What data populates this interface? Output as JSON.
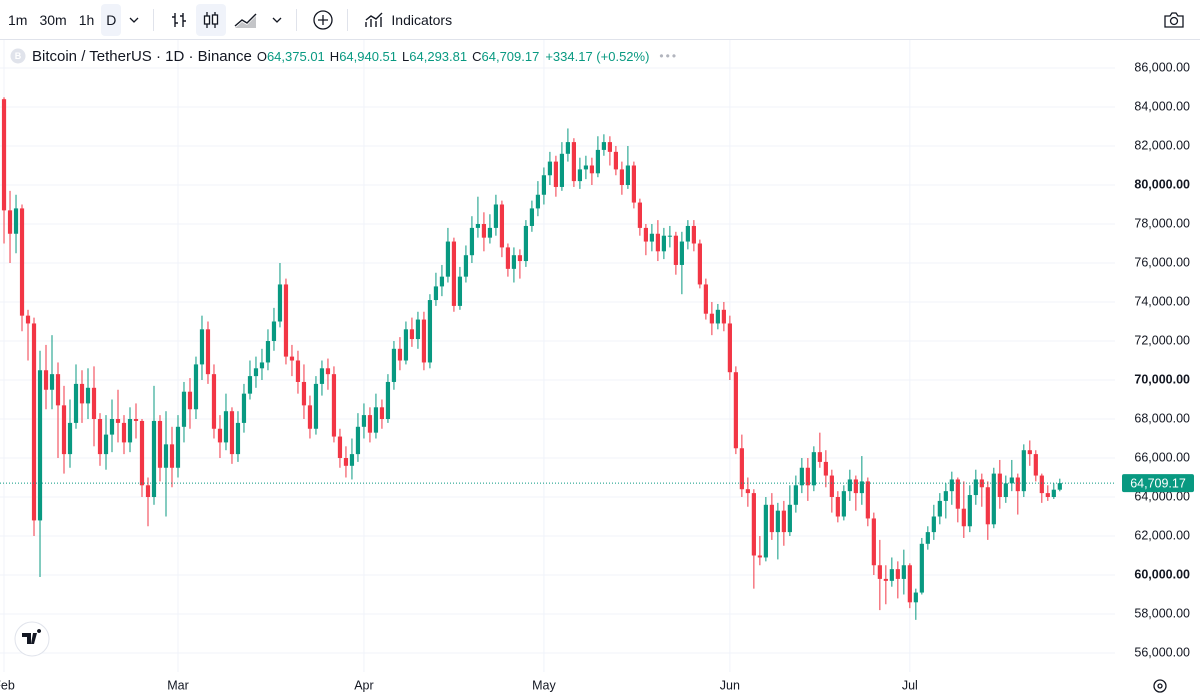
{
  "toolbar": {
    "intervals": [
      "1m",
      "30m",
      "1h",
      "D"
    ],
    "indicators": "Indicators"
  },
  "chart_data": {
    "type": "candlestick",
    "title": "Bitcoin / TetherUS · 1D · Binance",
    "ohlc_legend": [
      {
        "key": "O",
        "value": "64,375.01"
      },
      {
        "key": "H",
        "value": "64,940.51"
      },
      {
        "key": "L",
        "value": "64,293.81"
      },
      {
        "key": "C",
        "value": "64,709.17"
      }
    ],
    "change": "+334.17 (+0.52%)",
    "up_color": "#089981",
    "down_color": "#f23645",
    "open": [
      84400,
      78700,
      77500,
      78800,
      73300,
      72900,
      62800,
      70500,
      69500,
      70300,
      68700,
      66200,
      67800,
      69800,
      68800,
      69600,
      68000,
      66200,
      67200,
      68000,
      67800,
      66800,
      68000,
      67900,
      64600,
      64000,
      67900,
      65500,
      66700,
      65500,
      67600,
      69400,
      68500,
      70800,
      72600,
      70300,
      67500,
      66800,
      68400,
      66200,
      67800,
      69300,
      70200,
      70600,
      70900,
      72000,
      73000,
      74900,
      71200,
      71000,
      69900,
      68700,
      67500,
      69800,
      70600,
      70300,
      67100,
      66000,
      65600,
      66200,
      67600,
      68200,
      67300,
      68600,
      68000,
      69900,
      71600,
      71000,
      72600,
      72100,
      73100,
      70900,
      74100,
      74800,
      75300,
      77100,
      73800,
      75300,
      76400,
      77800,
      78000,
      77300,
      77800,
      79000,
      76800,
      75700,
      76400,
      76100,
      77900,
      78800,
      79500,
      80500,
      81200,
      79900,
      81600,
      82200,
      80200,
      80800,
      81000,
      80600,
      81800,
      82200,
      81700,
      80800,
      80000,
      81000,
      79100,
      77800,
      77100,
      77500,
      76600,
      77400,
      77400,
      75900,
      77100,
      77900,
      77000,
      74900,
      73400,
      72900,
      73600,
      72900,
      70400,
      66500,
      64400,
      64200,
      61000,
      60900,
      63600,
      62200,
      63300,
      62200,
      63600,
      64600,
      65500,
      64600,
      66300,
      65800,
      65100,
      64000,
      63000,
      64300,
      64900,
      64200,
      64800,
      62900,
      60500,
      59800,
      59700,
      60300,
      59800,
      60500,
      58600,
      59100,
      61600,
      62200,
      63000,
      63800,
      64300,
      64900,
      63400,
      62500,
      64100,
      64900,
      64500,
      62600,
      65200,
      64000,
      64700,
      65000,
      64300,
      66400,
      66200,
      65100,
      64200,
      64000,
      64375.01
    ],
    "high": [
      84500,
      79700,
      79500,
      79000,
      73600,
      73200,
      71500,
      71800,
      72300,
      70900,
      69700,
      69000,
      70800,
      70500,
      70600,
      70700,
      68300,
      68200,
      69000,
      69500,
      68200,
      68600,
      68800,
      68000,
      65000,
      69700,
      68200,
      68400,
      67600,
      68200,
      69900,
      70100,
      71200,
      73300,
      73000,
      70800,
      68200,
      69300,
      68600,
      68400,
      69800,
      71000,
      71200,
      71600,
      72600,
      73700,
      76000,
      75200,
      71800,
      71500,
      70800,
      69200,
      70200,
      71000,
      71100,
      70700,
      67500,
      66600,
      67000,
      68300,
      68800,
      68600,
      69300,
      69000,
      70300,
      72000,
      72200,
      73000,
      73200,
      73500,
      73500,
      74400,
      75500,
      75900,
      77800,
      77300,
      75800,
      76900,
      78400,
      79400,
      78600,
      78500,
      79500,
      79200,
      77000,
      76800,
      76700,
      78200,
      79200,
      80200,
      80900,
      81700,
      81500,
      82200,
      82900,
      82400,
      81400,
      81500,
      81400,
      82500,
      82600,
      82500,
      82000,
      81200,
      82000,
      81200,
      79300,
      78000,
      78000,
      78200,
      77800,
      77900,
      77600,
      77600,
      78200,
      78200,
      77200,
      75200,
      74000,
      73900,
      74000,
      73300,
      70700,
      67200,
      65000,
      64400,
      62000,
      64000,
      64200,
      63700,
      63800,
      64600,
      65100,
      66000,
      66000,
      66600,
      67300,
      66400,
      65400,
      64300,
      64600,
      65400,
      65100,
      66100,
      65000,
      63200,
      61800,
      60500,
      60900,
      60700,
      61300,
      60600,
      59300,
      61900,
      62500,
      63600,
      64200,
      64700,
      65300,
      65000,
      64800,
      64600,
      65400,
      65200,
      64800,
      65500,
      65900,
      65100,
      65900,
      65200,
      66700,
      66900,
      66400,
      65200,
      64600,
      64700,
      64940.51
    ],
    "low": [
      77000,
      76000,
      76500,
      72500,
      71000,
      62000,
      59900,
      68500,
      68500,
      66000,
      65200,
      65500,
      67500,
      67800,
      68000,
      66600,
      65600,
      65400,
      66300,
      66800,
      66200,
      66300,
      67000,
      64000,
      62500,
      63600,
      64800,
      63000,
      64500,
      65000,
      66800,
      67500,
      68000,
      70000,
      69800,
      67000,
      66000,
      66400,
      65700,
      65800,
      67300,
      69000,
      69600,
      70000,
      70500,
      71500,
      72700,
      70800,
      70200,
      69300,
      68000,
      67000,
      67200,
      69200,
      69500,
      66800,
      65500,
      65000,
      64900,
      65800,
      67000,
      66800,
      67000,
      67500,
      67800,
      69500,
      70500,
      70800,
      71700,
      71600,
      70500,
      70600,
      73800,
      74300,
      75000,
      73500,
      73600,
      75000,
      76000,
      77300,
      76600,
      77000,
      77400,
      76300,
      75300,
      75000,
      75200,
      75800,
      77600,
      78400,
      79000,
      80000,
      79400,
      79700,
      81200,
      79900,
      79800,
      80300,
      80000,
      80400,
      81500,
      81000,
      80500,
      79500,
      79800,
      78800,
      77400,
      76400,
      76600,
      76100,
      76200,
      76800,
      75400,
      74400,
      76700,
      76600,
      74700,
      73100,
      72300,
      72600,
      72500,
      70000,
      66200,
      64000,
      63500,
      59300,
      60500,
      60700,
      61800,
      60800,
      61500,
      62000,
      63200,
      64200,
      63800,
      64300,
      65500,
      64500,
      63200,
      62700,
      62800,
      63800,
      63300,
      63600,
      62500,
      60000,
      58200,
      58500,
      59400,
      58800,
      59000,
      58300,
      57700,
      59000,
      61300,
      61800,
      62600,
      62900,
      63600,
      62700,
      61900,
      62200,
      63600,
      63500,
      61800,
      62400,
      63400,
      63700,
      64300,
      63100,
      64000,
      65600,
      64800,
      63700,
      63800,
      63900,
      64293.81
    ],
    "close": [
      78700,
      77500,
      78800,
      73300,
      72900,
      62800,
      70500,
      69500,
      70300,
      68700,
      66200,
      67800,
      69800,
      68800,
      69600,
      68000,
      66200,
      67200,
      68000,
      67800,
      66800,
      68000,
      67900,
      64600,
      64000,
      67900,
      65500,
      66700,
      65500,
      67600,
      69400,
      68500,
      70800,
      72600,
      70300,
      67500,
      66800,
      68400,
      66200,
      67800,
      69300,
      70200,
      70600,
      70900,
      72000,
      73000,
      74900,
      71200,
      71000,
      69900,
      68700,
      67500,
      69800,
      70600,
      70300,
      67100,
      66000,
      65600,
      66200,
      67600,
      68200,
      67300,
      68600,
      68000,
      69900,
      71600,
      71000,
      72600,
      72100,
      73100,
      70900,
      74100,
      74800,
      75300,
      77100,
      73800,
      75300,
      76400,
      77800,
      78000,
      77300,
      77800,
      79000,
      76800,
      75700,
      76400,
      76100,
      77900,
      78800,
      79500,
      80500,
      81200,
      79900,
      81600,
      82200,
      80200,
      80800,
      81000,
      80600,
      81800,
      82200,
      81700,
      80800,
      80000,
      81000,
      79100,
      77800,
      77100,
      77500,
      76600,
      77400,
      77400,
      75900,
      77100,
      77900,
      77000,
      74900,
      73400,
      72900,
      73600,
      72900,
      70400,
      66500,
      64400,
      64200,
      61000,
      60900,
      63600,
      62200,
      63300,
      62200,
      63600,
      64600,
      65500,
      64600,
      66300,
      65800,
      65100,
      64000,
      63000,
      64300,
      64900,
      64200,
      64800,
      62900,
      60500,
      59800,
      59700,
      60300,
      59800,
      60500,
      58600,
      59100,
      61600,
      62200,
      63000,
      63800,
      64300,
      64900,
      63400,
      62500,
      64100,
      64900,
      64500,
      62600,
      65200,
      64000,
      64700,
      65000,
      64300,
      66400,
      66200,
      65100,
      64200,
      64000,
      64375.01,
      64709.17
    ],
    "last_price": {
      "value": 64709.17,
      "label": "64,709.17"
    },
    "xlim": [
      -0.67,
      185.2
    ],
    "xticks": [
      {
        "value": 0,
        "label": "Feb"
      },
      {
        "value": 29,
        "label": "Mar"
      },
      {
        "value": 60,
        "label": "Apr"
      },
      {
        "value": 90,
        "label": "May"
      },
      {
        "value": 121,
        "label": "Jun"
      },
      {
        "value": 151,
        "label": "Jul"
      }
    ],
    "ylim": [
      55026,
      87436
    ],
    "yticks": [
      {
        "value": 56000,
        "label": "56,000.00"
      },
      {
        "value": 58000,
        "label": "58,000.00"
      },
      {
        "value": 60000,
        "label": "60,000.00"
      },
      {
        "value": 62000,
        "label": "62,000.00"
      },
      {
        "value": 64000,
        "label": "64,000.00"
      },
      {
        "value": 66000,
        "label": "66,000.00"
      },
      {
        "value": 68000,
        "label": "68,000.00"
      },
      {
        "value": 70000,
        "label": "70,000.00"
      },
      {
        "value": 72000,
        "label": "72,000.00"
      },
      {
        "value": 74000,
        "label": "74,000.00"
      },
      {
        "value": 76000,
        "label": "76,000.00"
      },
      {
        "value": 78000,
        "label": "78,000.00"
      },
      {
        "value": 80000,
        "label": "80,000.00"
      },
      {
        "value": 82000,
        "label": "82,000.00"
      },
      {
        "value": 84000,
        "label": "84,000.00"
      },
      {
        "value": 86000,
        "label": "86,000.00"
      }
    ],
    "grid": true
  }
}
